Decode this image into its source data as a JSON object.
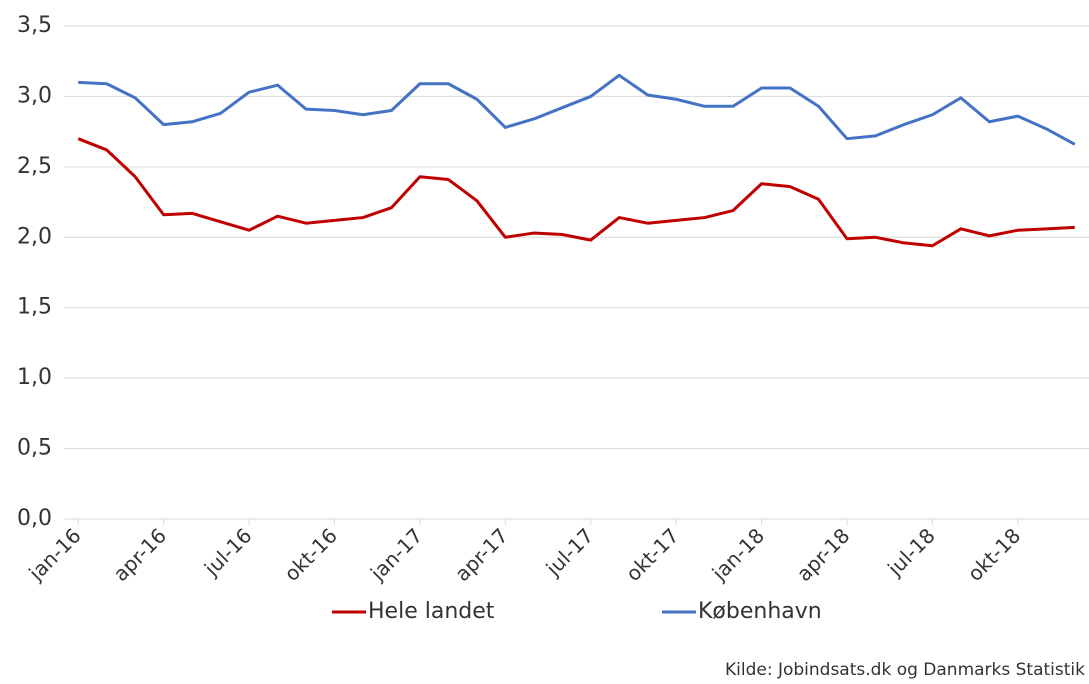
{
  "chart_data": {
    "type": "line",
    "categories": [
      "jan-16",
      null,
      null,
      "apr-16",
      null,
      null,
      "jul-16",
      null,
      null,
      "okt-16",
      null,
      null,
      "jan-17",
      null,
      null,
      "apr-17",
      null,
      null,
      "jul-17",
      null,
      null,
      "okt-17",
      null,
      null,
      "jan-18",
      null,
      null,
      "apr-18",
      null,
      null,
      "jul-18",
      null,
      null,
      "okt-18",
      null,
      null
    ],
    "series": [
      {
        "name": "Hele landet",
        "color": "#c00000",
        "values": [
          2.7,
          2.62,
          2.43,
          2.16,
          2.17,
          2.11,
          2.05,
          2.15,
          2.1,
          2.12,
          2.14,
          2.21,
          2.43,
          2.41,
          2.26,
          2.0,
          2.03,
          2.02,
          1.98,
          2.14,
          2.1,
          2.12,
          2.14,
          2.19,
          2.38,
          2.36,
          2.27,
          1.99,
          2.0,
          1.96,
          1.94,
          2.06,
          2.01,
          2.05,
          2.06,
          2.07
        ]
      },
      {
        "name": "København",
        "color": "#4472c4",
        "values": [
          3.1,
          3.09,
          2.99,
          2.8,
          2.82,
          2.88,
          3.03,
          3.08,
          2.91,
          2.9,
          2.87,
          2.9,
          3.09,
          3.09,
          2.98,
          2.78,
          2.84,
          2.92,
          3.0,
          3.15,
          3.01,
          2.98,
          2.93,
          2.93,
          3.06,
          3.06,
          2.93,
          2.7,
          2.72,
          2.8,
          2.87,
          2.99,
          2.82,
          2.86,
          2.77,
          2.66
        ]
      }
    ],
    "ylim": [
      0,
      3.5
    ],
    "yticks": [
      {
        "value": 0,
        "label": "0,0"
      },
      {
        "value": 0.5,
        "label": "0,5"
      },
      {
        "value": 1,
        "label": "1,0"
      },
      {
        "value": 1.5,
        "label": "1,5"
      },
      {
        "value": 2,
        "label": "2,0"
      },
      {
        "value": 2.5,
        "label": "2,5"
      },
      {
        "value": 3,
        "label": "3,0"
      },
      {
        "value": 3.5,
        "label": "3,5"
      }
    ],
    "grid": true,
    "source": "Kilde: Jobindsats.dk og Danmarks Statistik"
  }
}
